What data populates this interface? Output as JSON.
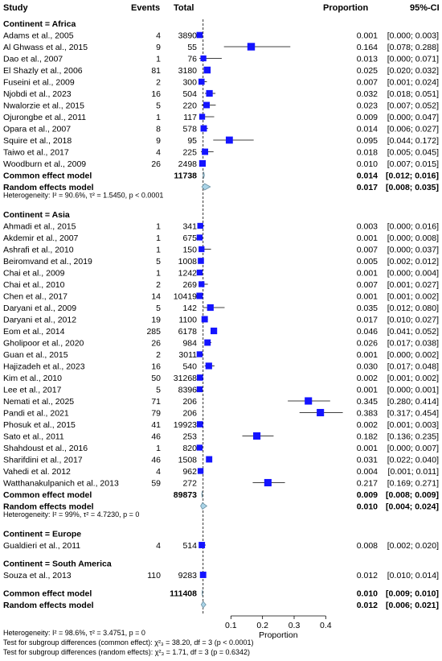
{
  "chart_data": {
    "type": "forest",
    "title": "",
    "columns": {
      "study": "Study",
      "events": "Events",
      "total": "Total",
      "proportion": "Proportion",
      "ci": "95%-CI"
    },
    "xlabel": "Proportion",
    "xlim": [
      0,
      0.45
    ],
    "xticks": [
      "0.1",
      "0.2",
      "0.3",
      "0.4"
    ],
    "xtick_values": [
      0.1,
      0.2,
      0.3,
      0.4
    ],
    "reference_line": 0.012,
    "colors": {
      "box": "#1414ff",
      "diamond": "#aad4e8",
      "diamond_stroke": "#6a8fa0",
      "line": "#000000",
      "dashed": "#000000"
    },
    "groups": [
      {
        "label": "Continent = Africa",
        "studies": [
          {
            "study": "Adams et al., 2005",
            "events": "4",
            "total": "3890",
            "prop": "0.001",
            "ci": "[0.000; 0.003]",
            "p": 0.001,
            "lo": 0.0,
            "hi": 0.003,
            "w": 0.6
          },
          {
            "study": "Al Ghwass et al., 2015",
            "events": "9",
            "total": "55",
            "prop": "0.164",
            "ci": "[0.078; 0.288]",
            "p": 0.164,
            "lo": 0.078,
            "hi": 0.288,
            "w": 0.9
          },
          {
            "study": "Dao et al., 2007",
            "events": "1",
            "total": "76",
            "prop": "0.013",
            "ci": "[0.000; 0.071]",
            "p": 0.013,
            "lo": 0.0,
            "hi": 0.071,
            "w": 0.55
          },
          {
            "study": "El Shazly et al., 2006",
            "events": "81",
            "total": "3180",
            "prop": "0.025",
            "ci": "[0.020; 0.032]",
            "p": 0.025,
            "lo": 0.02,
            "hi": 0.032,
            "w": 0.75
          },
          {
            "study": "Fuseini et al., 2009",
            "events": "2",
            "total": "300",
            "prop": "0.007",
            "ci": "[0.001; 0.024]",
            "p": 0.007,
            "lo": 0.001,
            "hi": 0.024,
            "w": 0.6
          },
          {
            "study": "Njobdi et al., 2023",
            "events": "16",
            "total": "504",
            "prop": "0.032",
            "ci": "[0.018; 0.051]",
            "p": 0.032,
            "lo": 0.018,
            "hi": 0.051,
            "w": 0.7
          },
          {
            "study": "Nwalorzie et al., 2015",
            "events": "5",
            "total": "220",
            "prop": "0.023",
            "ci": "[0.007; 0.052]",
            "p": 0.023,
            "lo": 0.007,
            "hi": 0.052,
            "w": 0.65
          },
          {
            "study": "Ojurongbe et al., 2011",
            "events": "1",
            "total": "117",
            "prop": "0.009",
            "ci": "[0.000; 0.047]",
            "p": 0.009,
            "lo": 0.0,
            "hi": 0.047,
            "w": 0.55
          },
          {
            "study": "Opara et al., 2007",
            "events": "8",
            "total": "578",
            "prop": "0.014",
            "ci": "[0.006; 0.027]",
            "p": 0.014,
            "lo": 0.006,
            "hi": 0.027,
            "w": 0.65
          },
          {
            "study": "Squire et al., 2018",
            "events": "9",
            "total": "95",
            "prop": "0.095",
            "ci": "[0.044; 0.172]",
            "p": 0.095,
            "lo": 0.044,
            "hi": 0.172,
            "w": 0.8
          },
          {
            "study": "Taiwo et al., 2017",
            "events": "4",
            "total": "225",
            "prop": "0.018",
            "ci": "[0.005; 0.045]",
            "p": 0.018,
            "lo": 0.005,
            "hi": 0.045,
            "w": 0.65
          },
          {
            "study": "Woodburn et al., 2009",
            "events": "26",
            "total": "2498",
            "prop": "0.010",
            "ci": "[0.007; 0.015]",
            "p": 0.01,
            "lo": 0.007,
            "hi": 0.015,
            "w": 0.7
          }
        ],
        "common": {
          "label": "Common effect model",
          "total": "11738",
          "prop": "0.014",
          "ci": "[0.012; 0.016]",
          "p": 0.014,
          "lo": 0.012,
          "hi": 0.016
        },
        "random": {
          "label": "Random effects model",
          "prop": "0.017",
          "ci": "[0.008; 0.035]",
          "p": 0.017,
          "lo": 0.008,
          "hi": 0.035
        },
        "heterogeneity": "Heterogeneity: I² = 90.6%, τ² = 1.5450, p < 0.0001"
      },
      {
        "label": "Continent = Asia",
        "studies": [
          {
            "study": "Ahmadi et al., 2015",
            "events": "1",
            "total": "341",
            "prop": "0.003",
            "ci": "[0.000; 0.016]",
            "p": 0.003,
            "lo": 0.0,
            "hi": 0.016,
            "w": 0.55
          },
          {
            "study": "Akdemir et al., 2007",
            "events": "1",
            "total": "675",
            "prop": "0.001",
            "ci": "[0.000; 0.008]",
            "p": 0.001,
            "lo": 0.0,
            "hi": 0.008,
            "w": 0.55
          },
          {
            "study": "Ashrafi et al., 2010",
            "events": "1",
            "total": "150",
            "prop": "0.007",
            "ci": "[0.000; 0.037]",
            "p": 0.007,
            "lo": 0.0,
            "hi": 0.037,
            "w": 0.55
          },
          {
            "study": "Beiromvand et al., 2019",
            "events": "5",
            "total": "1008",
            "prop": "0.005",
            "ci": "[0.002; 0.012]",
            "p": 0.005,
            "lo": 0.002,
            "hi": 0.012,
            "w": 0.6
          },
          {
            "study": "Chai et al., 2009",
            "events": "1",
            "total": "1242",
            "prop": "0.001",
            "ci": "[0.000; 0.004]",
            "p": 0.001,
            "lo": 0.0,
            "hi": 0.004,
            "w": 0.55
          },
          {
            "study": "Chai et al., 2010",
            "events": "2",
            "total": "269",
            "prop": "0.007",
            "ci": "[0.001; 0.027]",
            "p": 0.007,
            "lo": 0.001,
            "hi": 0.027,
            "w": 0.55
          },
          {
            "study": "Chen et al., 2017",
            "events": "14",
            "total": "10419",
            "prop": "0.001",
            "ci": "[0.001; 0.002]",
            "p": 0.001,
            "lo": 0.001,
            "hi": 0.002,
            "w": 0.65
          },
          {
            "study": "Daryani et al., 2009",
            "events": "5",
            "total": "142",
            "prop": "0.035",
            "ci": "[0.012; 0.080]",
            "p": 0.035,
            "lo": 0.012,
            "hi": 0.08,
            "w": 0.7
          },
          {
            "study": "Daryani et al., 2012",
            "events": "19",
            "total": "1100",
            "prop": "0.017",
            "ci": "[0.010; 0.027]",
            "p": 0.017,
            "lo": 0.01,
            "hi": 0.027,
            "w": 0.65
          },
          {
            "study": "Eom et al., 2014",
            "events": "285",
            "total": "6178",
            "prop": "0.046",
            "ci": "[0.041; 0.052]",
            "p": 0.046,
            "lo": 0.041,
            "hi": 0.052,
            "w": 0.7
          },
          {
            "study": "Gholipoor et al., 2020",
            "events": "26",
            "total": "984",
            "prop": "0.026",
            "ci": "[0.017; 0.038]",
            "p": 0.026,
            "lo": 0.017,
            "hi": 0.038,
            "w": 0.65
          },
          {
            "study": "Guan et al., 2015",
            "events": "2",
            "total": "3011",
            "prop": "0.001",
            "ci": "[0.000; 0.002]",
            "p": 0.001,
            "lo": 0.0,
            "hi": 0.002,
            "w": 0.55
          },
          {
            "study": "Hajizadeh et al., 2023",
            "events": "16",
            "total": "540",
            "prop": "0.030",
            "ci": "[0.017; 0.048]",
            "p": 0.03,
            "lo": 0.017,
            "hi": 0.048,
            "w": 0.7
          },
          {
            "study": "Kim et al., 2010",
            "events": "50",
            "total": "31268",
            "prop": "0.002",
            "ci": "[0.001; 0.002]",
            "p": 0.002,
            "lo": 0.001,
            "hi": 0.002,
            "w": 0.6
          },
          {
            "study": "Lee et al., 2017",
            "events": "5",
            "total": "8396",
            "prop": "0.001",
            "ci": "[0.000; 0.001]",
            "p": 0.001,
            "lo": 0.0,
            "hi": 0.001,
            "w": 0.55
          },
          {
            "study": "Nemati et al., 2025",
            "events": "71",
            "total": "206",
            "prop": "0.345",
            "ci": "[0.280; 0.414]",
            "p": 0.345,
            "lo": 0.28,
            "hi": 0.414,
            "w": 0.85
          },
          {
            "study": "Pandi et al., 2021",
            "events": "79",
            "total": "206",
            "prop": "0.383",
            "ci": "[0.317; 0.454]",
            "p": 0.383,
            "lo": 0.317,
            "hi": 0.454,
            "w": 0.85
          },
          {
            "study": "Phosuk et al., 2015",
            "events": "41",
            "total": "19923",
            "prop": "0.002",
            "ci": "[0.001; 0.003]",
            "p": 0.002,
            "lo": 0.001,
            "hi": 0.003,
            "w": 0.6
          },
          {
            "study": "Sato et al., 2011",
            "events": "46",
            "total": "253",
            "prop": "0.182",
            "ci": "[0.136; 0.235]",
            "p": 0.182,
            "lo": 0.136,
            "hi": 0.235,
            "w": 0.85
          },
          {
            "study": "Shahdoust et al., 2016",
            "events": "1",
            "total": "820",
            "prop": "0.001",
            "ci": "[0.000; 0.007]",
            "p": 0.001,
            "lo": 0.0,
            "hi": 0.007,
            "w": 0.55
          },
          {
            "study": "Sharifdini et al., 2017",
            "events": "46",
            "total": "1508",
            "prop": "0.031",
            "ci": "[0.022; 0.040]",
            "p": 0.031,
            "lo": 0.022,
            "hi": 0.04,
            "w": 0.65
          },
          {
            "study": "Vahedi  et al. 2012",
            "events": "4",
            "total": "962",
            "prop": "0.004",
            "ci": "[0.001; 0.011]",
            "p": 0.004,
            "lo": 0.001,
            "hi": 0.011,
            "w": 0.55
          },
          {
            "study": "Watthanakulpanich et al., 2013",
            "events": "59",
            "total": "272",
            "prop": "0.217",
            "ci": "[0.169; 0.271]",
            "p": 0.217,
            "lo": 0.169,
            "hi": 0.271,
            "w": 0.85
          }
        ],
        "common": {
          "label": "Common effect model",
          "total": "89873",
          "prop": "0.009",
          "ci": "[0.008; 0.009]",
          "p": 0.009,
          "lo": 0.008,
          "hi": 0.009
        },
        "random": {
          "label": "Random effects model",
          "prop": "0.010",
          "ci": "[0.004; 0.024]",
          "p": 0.01,
          "lo": 0.004,
          "hi": 0.024
        },
        "heterogeneity": "Heterogeneity: I² = 99%, τ² = 4.7230, p = 0"
      },
      {
        "label": "Continent = Europe",
        "studies": [
          {
            "study": "Gualdieri et al., 2011",
            "events": "4",
            "total": "514",
            "prop": "0.008",
            "ci": "[0.002; 0.020]",
            "p": 0.008,
            "lo": 0.002,
            "hi": 0.02,
            "w": 0.65
          }
        ]
      },
      {
        "label": "Continent = South America",
        "studies": [
          {
            "study": "Souza et al., 2013",
            "events": "110",
            "total": "9283",
            "prop": "0.012",
            "ci": "[0.010; 0.014]",
            "p": 0.012,
            "lo": 0.01,
            "hi": 0.014,
            "w": 0.65
          }
        ]
      }
    ],
    "overall": {
      "common": {
        "label": "Common effect model",
        "total": "111408",
        "prop": "0.010",
        "ci": "[0.009; 0.010]",
        "p": 0.01,
        "lo": 0.009,
        "hi": 0.01
      },
      "random": {
        "label": "Random effects model",
        "prop": "0.012",
        "ci": "[0.006; 0.021]",
        "p": 0.012,
        "lo": 0.006,
        "hi": 0.021
      }
    },
    "footer": [
      "Heterogeneity: I² = 98.6%, τ² = 3.4751, p = 0",
      "Test for subgroup differences (common effect): χ²₃ = 38.20, df = 3 (p < 0.0001)",
      "Test for subgroup differences (random effects): χ²₃ = 1.71, df = 3 (p = 0.6342)"
    ]
  }
}
